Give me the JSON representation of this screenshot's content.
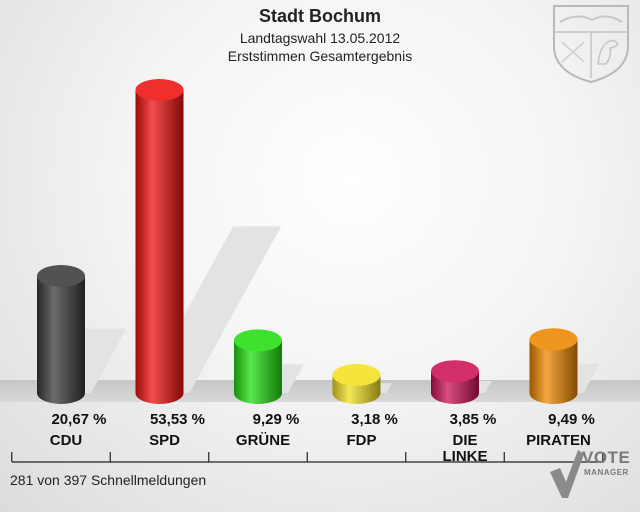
{
  "header": {
    "title": "Stadt Bochum",
    "subtitle": "Landtagswahl 13.05.2012",
    "subtitle2": "Erststimmen Gesamtergebnis"
  },
  "footer": {
    "status": "281 von 397 Schnellmeldungen"
  },
  "logo": {
    "word1": "VOTE",
    "word2": "MANAGER"
  },
  "chart_data": {
    "type": "bar",
    "title": "Stadt Bochum",
    "subtitle": "Landtagswahl 13.05.2012 — Erststimmen Gesamtergebnis",
    "ylabel": "",
    "xlabel": "",
    "ylim": [
      0,
      60
    ],
    "categories": [
      "CDU",
      "SPD",
      "GRÜNE",
      "FDP",
      "DIE LINKE",
      "PIRATEN"
    ],
    "labels": [
      "20,67 %",
      "53,53 %",
      "9,29 %",
      "3,18 %",
      "3,85 %",
      "9,49 %"
    ],
    "values": [
      20.67,
      53.53,
      9.29,
      3.18,
      3.85,
      9.49
    ],
    "colors": [
      "#3a3a3a",
      "#ee1111",
      "#22dd11",
      "#f2e020",
      "#cc1155",
      "#ee8800"
    ]
  }
}
